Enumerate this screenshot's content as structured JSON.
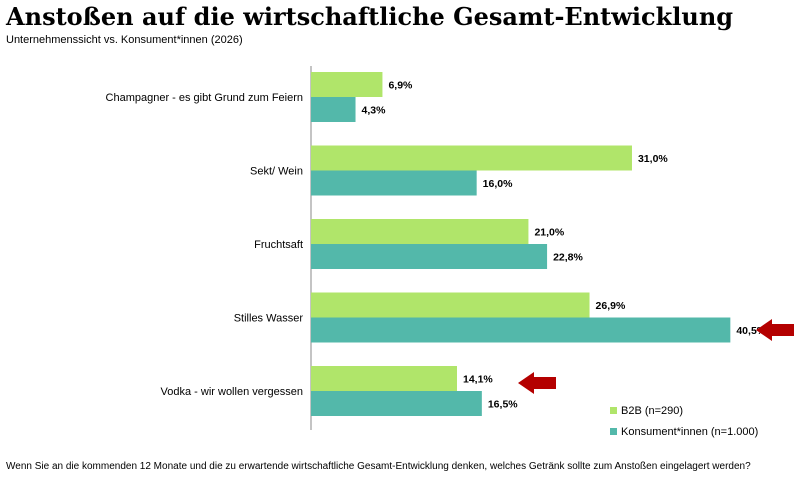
{
  "title": "Anstoßen auf die wirtschaftliche Gesamt-Entwicklung",
  "subtitle": "Unternehmenssicht vs. Konsument*innen (2026)",
  "footnote": "Wenn Sie an die kommenden 12 Monate und die zu erwartende wirtschaftliche Gesamt-Entwicklung denken, welches Getränk sollte zum Anstoßen eingelagert werden?",
  "colors": {
    "b2b": "#b0e56a",
    "konsument": "#53b8aa",
    "arrow": "#b40000"
  },
  "chart_data": {
    "type": "bar",
    "orientation": "horizontal",
    "categories": [
      "Champagner - es gibt Grund zum Feiern",
      "Sekt/ Wein",
      "Fruchtsaft",
      "Stilles Wasser",
      "Vodka - wir wollen vergessen"
    ],
    "series": [
      {
        "name": "B2B (n=290)",
        "values": [
          6.9,
          31.0,
          21.0,
          26.9,
          14.1
        ],
        "labels": [
          "6,9%",
          "31,0%",
          "21,0%",
          "26,9%",
          "14,1%"
        ]
      },
      {
        "name": "Konsument*innen (n=1.000)",
        "values": [
          4.3,
          16.0,
          22.8,
          40.5,
          16.5
        ],
        "labels": [
          "4,3%",
          "16,0%",
          "22,8%",
          "40,5%",
          "16,5%"
        ]
      }
    ],
    "xlim": [
      0,
      48
    ],
    "highlighted": [
      "Stilles Wasser",
      "Vodka - wir wollen vergessen"
    ],
    "legend_position": "bottom-right"
  }
}
